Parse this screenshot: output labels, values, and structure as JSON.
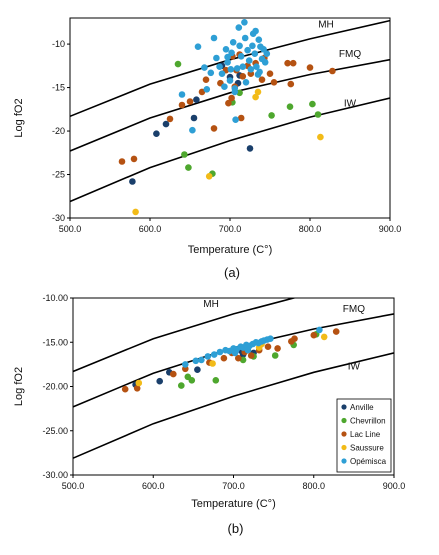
{
  "colors": {
    "Anville": "#1a3f6b",
    "Chevrillon": "#4ea72e",
    "Lac Line": "#b55212",
    "Saussure": "#f2bb18",
    "Opémisca": "#2e9fd5"
  },
  "chart_data": [
    {
      "id": "a",
      "type": "scatter",
      "panel_label": "(a)",
      "xlabel": "Temperature (C°)",
      "ylabel": "Log fO2",
      "xlim": [
        500,
        900
      ],
      "ylim": [
        -30,
        -7
      ],
      "xticks": [
        "500.0",
        "600.0",
        "700.0",
        "800.0",
        "900.0"
      ],
      "yticks": [
        "-30",
        "-25",
        "-20",
        "-15",
        "-10"
      ],
      "ytick_values": [
        -30,
        -25,
        -20,
        -15,
        -10
      ],
      "xtick_values": [
        500,
        600,
        700,
        800,
        900
      ],
      "grid": false,
      "buffers": [
        {
          "name": "MH",
          "label_pos": [
            820,
            -8.1
          ],
          "x": [
            500,
            600,
            700,
            800,
            900
          ],
          "y": [
            -18.3,
            -14.6,
            -11.8,
            -9.4,
            -7.3
          ]
        },
        {
          "name": "FMQ",
          "label_pos": [
            850,
            -11.5
          ],
          "x": [
            500,
            600,
            700,
            800,
            900
          ],
          "y": [
            -22.3,
            -18.5,
            -15.6,
            -13.5,
            -11.8
          ]
        },
        {
          "name": "IW",
          "label_pos": [
            850,
            -17.2
          ],
          "x": [
            500,
            600,
            700,
            800,
            900
          ],
          "y": [
            -28.1,
            -24.2,
            -21.1,
            -18.4,
            -16.2
          ]
        }
      ],
      "series": [
        {
          "name": "Anville",
          "points": [
            [
              578,
              -25.8
            ],
            [
              608,
              -20.3
            ],
            [
              620,
              -19.2
            ],
            [
              655,
              -18.5
            ],
            [
              658,
              -16.4
            ],
            [
              710,
              -14.5
            ],
            [
              712,
              -13.6
            ],
            [
              725,
              -22.0
            ],
            [
              700,
              -13.8
            ],
            [
              690,
              -12.5
            ]
          ]
        },
        {
          "name": "Chevrillon",
          "points": [
            [
              635,
              -12.3
            ],
            [
              643,
              -22.7
            ],
            [
              648,
              -24.2
            ],
            [
              678,
              -24.9
            ],
            [
              703,
              -16.7
            ],
            [
              712,
              -15.6
            ],
            [
              752,
              -18.2
            ],
            [
              775,
              -17.2
            ],
            [
              803,
              -16.9
            ],
            [
              810,
              -18.1
            ]
          ]
        },
        {
          "name": "Lac Line",
          "points": [
            [
              565,
              -23.5
            ],
            [
              580,
              -23.2
            ],
            [
              625,
              -18.6
            ],
            [
              640,
              -17.0
            ],
            [
              650,
              -16.6
            ],
            [
              665,
              -15.5
            ],
            [
              670,
              -14.1
            ],
            [
              680,
              -19.7
            ],
            [
              688,
              -14.5
            ],
            [
              695,
              -13.0
            ],
            [
              698,
              -16.8
            ],
            [
              702,
              -16.2
            ],
            [
              706,
              -14.9
            ],
            [
              712,
              -11.2
            ],
            [
              716,
              -13.7
            ],
            [
              722,
              -12.5
            ],
            [
              726,
              -13.4
            ],
            [
              732,
              -12.2
            ],
            [
              740,
              -14.1
            ],
            [
              743,
              -11.6
            ],
            [
              750,
              -13.4
            ],
            [
              755,
              -14.4
            ],
            [
              772,
              -12.2
            ],
            [
              776,
              -14.6
            ],
            [
              779,
              -12.2
            ],
            [
              800,
              -12.7
            ],
            [
              828,
              -13.1
            ],
            [
              703,
              -11.4
            ],
            [
              708,
              -13.0
            ],
            [
              714,
              -18.5
            ]
          ]
        },
        {
          "name": "Saussure",
          "points": [
            [
              582,
              -29.3
            ],
            [
              674,
              -25.2
            ],
            [
              732,
              -16.1
            ],
            [
              735,
              -15.5
            ],
            [
              813,
              -20.7
            ]
          ]
        },
        {
          "name": "Opémisca",
          "points": [
            [
              640,
              -15.8
            ],
            [
              653,
              -19.9
            ],
            [
              660,
              -10.3
            ],
            [
              668,
              -12.7
            ],
            [
              671,
              -15.2
            ],
            [
              676,
              -13.3
            ],
            [
              680,
              -9.3
            ],
            [
              683,
              -11.6
            ],
            [
              687,
              -12.6
            ],
            [
              690,
              -13.4
            ],
            [
              693,
              -14.9
            ],
            [
              695,
              -10.6
            ],
            [
              697,
              -12.1
            ],
            [
              700,
              -14.2
            ],
            [
              702,
              -11.0
            ],
            [
              704,
              -9.8
            ],
            [
              706,
              -15.5
            ],
            [
              707,
              -18.7
            ],
            [
              709,
              -12.8
            ],
            [
              711,
              -8.1
            ],
            [
              712,
              -10.2
            ],
            [
              714,
              -11.4
            ],
            [
              716,
              -12.6
            ],
            [
              718,
              -7.5
            ],
            [
              719,
              -9.3
            ],
            [
              720,
              -14.4
            ],
            [
              722,
              -10.7
            ],
            [
              724,
              -11.9
            ],
            [
              726,
              -12.9
            ],
            [
              728,
              -10.2
            ],
            [
              729,
              -8.8
            ],
            [
              731,
              -11.1
            ],
            [
              733,
              -12.6
            ],
            [
              735,
              -13.5
            ],
            [
              736,
              -9.5
            ],
            [
              738,
              -10.3
            ],
            [
              740,
              -11.7
            ],
            [
              742,
              -10.6
            ],
            [
              744,
              -12.1
            ],
            [
              746,
              -11.1
            ],
            [
              732,
              -8.5
            ],
            [
              737,
              -13.2
            ],
            [
              701,
              -12.9
            ],
            [
              706,
              -15.1
            ],
            [
              697,
              -11.5
            ]
          ]
        }
      ]
    },
    {
      "id": "b",
      "type": "scatter",
      "panel_label": "(b)",
      "xlabel": "Temperature (C°)",
      "ylabel": "Log fO2",
      "xlim": [
        500,
        900
      ],
      "ylim": [
        -30,
        -10
      ],
      "xticks": [
        "500.0",
        "600.0",
        "700.0",
        "800.0",
        "900.0"
      ],
      "yticks": [
        "-30.00",
        "-25.00",
        "-20.00",
        "-15.00",
        "-10.00"
      ],
      "ytick_values": [
        -30,
        -25,
        -20,
        -15,
        -10
      ],
      "xtick_values": [
        500,
        600,
        700,
        800,
        900
      ],
      "grid": false,
      "legend": {
        "position": "bottom-right",
        "entries": [
          "Anville",
          "Chevrillon",
          "Lac Line",
          "Saussure",
          "Opémisca"
        ]
      },
      "buffers": [
        {
          "name": "MH",
          "label_pos": [
            672,
            -11.0
          ],
          "x": [
            500,
            600,
            700,
            800,
            900
          ],
          "y": [
            -18.3,
            -14.6,
            -11.8,
            -9.4,
            -7.3
          ]
        },
        {
          "name": "FMQ",
          "label_pos": [
            850,
            -11.6
          ],
          "x": [
            500,
            600,
            700,
            800,
            900
          ],
          "y": [
            -22.3,
            -18.5,
            -15.6,
            -13.5,
            -11.8
          ]
        },
        {
          "name": "IW",
          "label_pos": [
            850,
            -18.1
          ],
          "x": [
            500,
            600,
            700,
            800,
            900
          ],
          "y": [
            -28.1,
            -24.2,
            -21.1,
            -18.4,
            -16.2
          ]
        }
      ],
      "series": [
        {
          "name": "Anville",
          "points": [
            [
              578,
              -19.8
            ],
            [
              608,
              -19.4
            ],
            [
              620,
              -18.4
            ],
            [
              655,
              -18.1
            ],
            [
              710,
              -16.0
            ],
            [
              712,
              -16.4
            ],
            [
              725,
              -16.2
            ]
          ]
        },
        {
          "name": "Chevrillon",
          "points": [
            [
              635,
              -19.9
            ],
            [
              643,
              -18.9
            ],
            [
              648,
              -19.3
            ],
            [
              678,
              -19.3
            ],
            [
              712,
              -17.0
            ],
            [
              725,
              -16.6
            ],
            [
              752,
              -16.5
            ],
            [
              775,
              -15.3
            ],
            [
              803,
              -14.1
            ]
          ]
        },
        {
          "name": "Lac Line",
          "points": [
            [
              565,
              -20.3
            ],
            [
              580,
              -20.2
            ],
            [
              625,
              -18.6
            ],
            [
              640,
              -18.0
            ],
            [
              670,
              -17.3
            ],
            [
              688,
              -16.8
            ],
            [
              698,
              -16.2
            ],
            [
              706,
              -16.8
            ],
            [
              714,
              -16.1
            ],
            [
              722,
              -16.5
            ],
            [
              732,
              -15.9
            ],
            [
              743,
              -15.5
            ],
            [
              755,
              -15.7
            ],
            [
              772,
              -14.9
            ],
            [
              776,
              -14.6
            ],
            [
              800,
              -14.2
            ],
            [
              828,
              -13.8
            ]
          ]
        },
        {
          "name": "Saussure",
          "points": [
            [
              582,
              -19.6
            ],
            [
              674,
              -17.4
            ],
            [
              732,
              -15.6
            ],
            [
              735,
              -15.2
            ],
            [
              813,
              -14.4
            ]
          ]
        },
        {
          "name": "Opémisca",
          "points": [
            [
              640,
              -17.5
            ],
            [
              653,
              -17.1
            ],
            [
              660,
              -17.0
            ],
            [
              668,
              -16.6
            ],
            [
              676,
              -16.4
            ],
            [
              683,
              -16.1
            ],
            [
              690,
              -15.9
            ],
            [
              695,
              -16.0
            ],
            [
              700,
              -15.7
            ],
            [
              704,
              -15.8
            ],
            [
              709,
              -15.5
            ],
            [
              712,
              -15.6
            ],
            [
              716,
              -15.3
            ],
            [
              720,
              -15.4
            ],
            [
              724,
              -15.2
            ],
            [
              728,
              -15.0
            ],
            [
              731,
              -15.1
            ],
            [
              735,
              -14.9
            ],
            [
              738,
              -14.8
            ],
            [
              742,
              -14.7
            ],
            [
              746,
              -14.6
            ],
            [
              702,
              -16.2
            ],
            [
              718,
              -15.9
            ],
            [
              807,
              -13.6
            ]
          ]
        }
      ]
    }
  ]
}
